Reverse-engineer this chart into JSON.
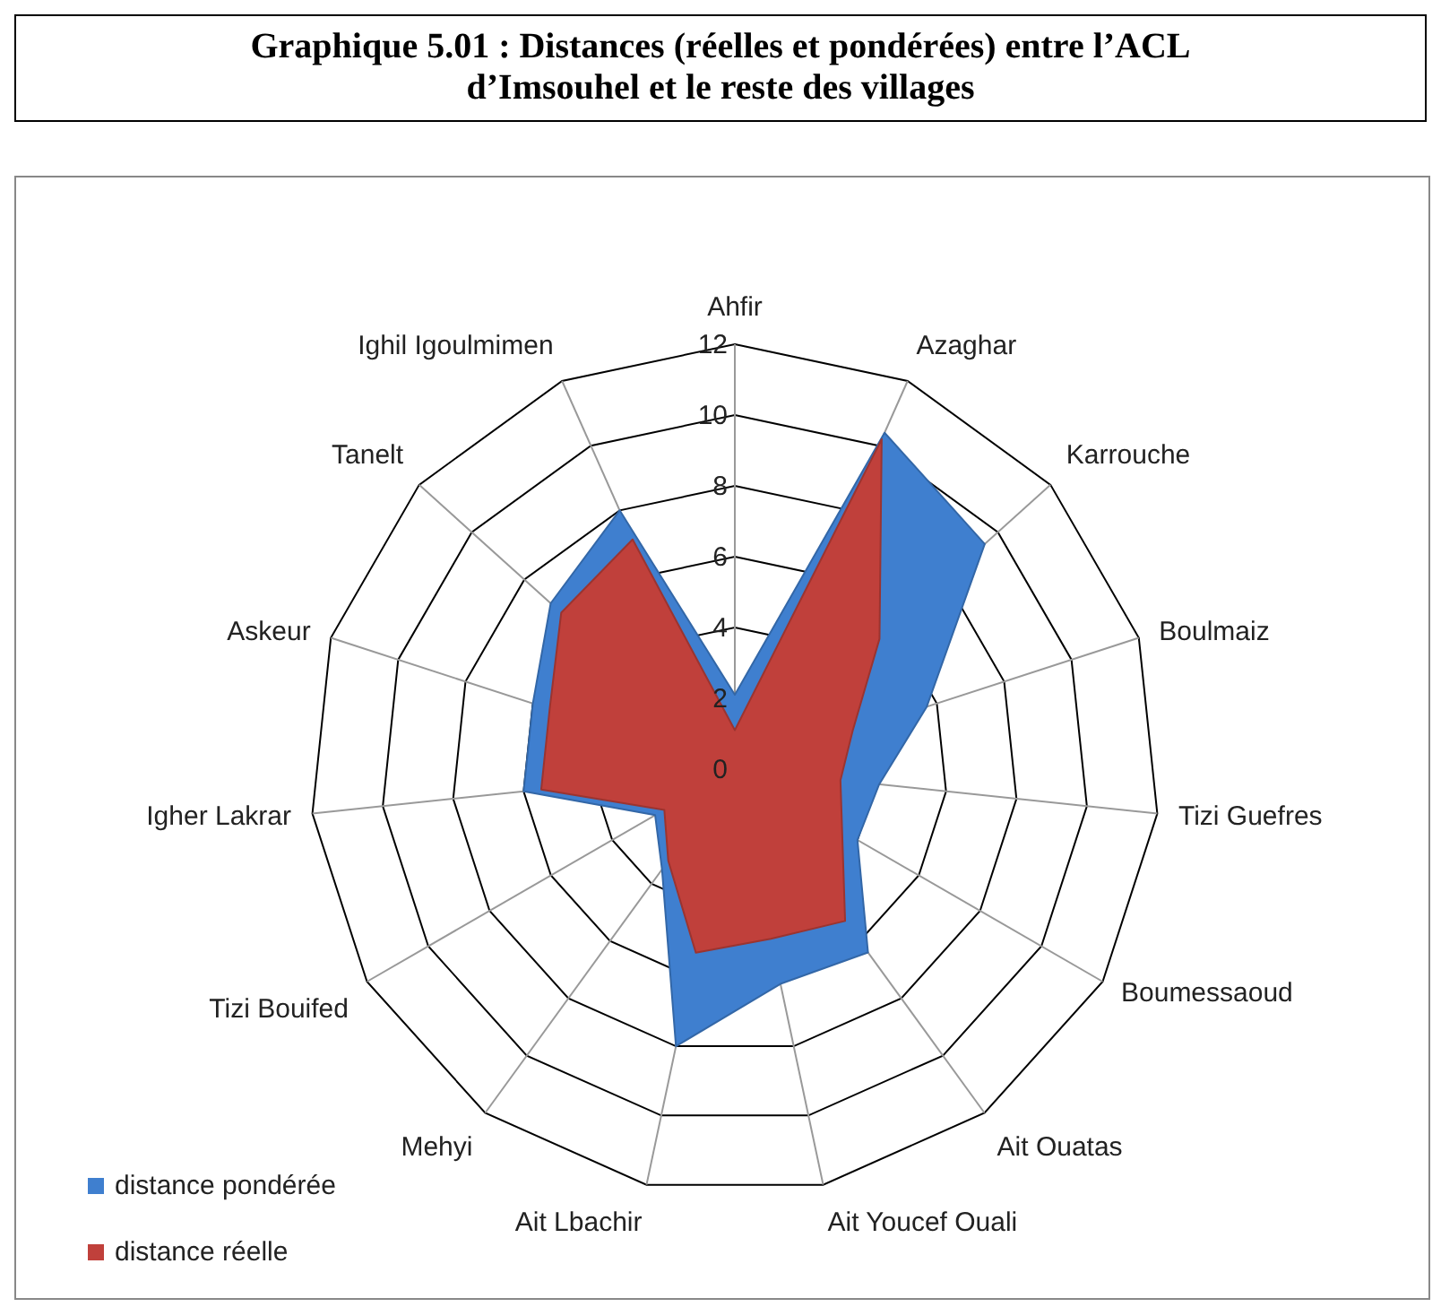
{
  "chart_data": {
    "type": "radar",
    "title": "Graphique 5.01 : Distances (réelles et pondérées) entre l’ACL d’Imsouhel et le reste des villages",
    "categories": [
      "Ahfir",
      "Azaghar",
      "Karrouche",
      "Boulmaiz",
      "Tizi Guefres",
      "Boumessaoud",
      "Ait Ouatas",
      "Ait Youcef Ouali",
      "Ait Lbachir",
      "Mehyi",
      "Tizi Bouifed",
      "Igher Lakrar",
      "Askeur",
      "Tanelt",
      "Ighil Igoulmimen"
    ],
    "series": [
      {
        "name": "distance pondérée",
        "color": "#3f7fcf",
        "values": [
          2.1,
          10.4,
          9.5,
          5.7,
          4.1,
          4.0,
          6.4,
          6.2,
          8,
          3.5,
          2.6,
          6.0,
          6.0,
          7.0,
          8.0
        ]
      },
      {
        "name": "distance réelle",
        "color": "#c0403b",
        "values": [
          1.1,
          10.2,
          5.5,
          3.5,
          3.0,
          3.5,
          5.3,
          4.9,
          5.3,
          3.2,
          2.3,
          5.5,
          5.5,
          6.6,
          7.1
        ]
      }
    ],
    "ylim": [
      0,
      12
    ],
    "yticks": [
      0,
      2,
      4,
      6,
      8,
      10,
      12
    ],
    "grid": true,
    "legend": "bottom left"
  }
}
